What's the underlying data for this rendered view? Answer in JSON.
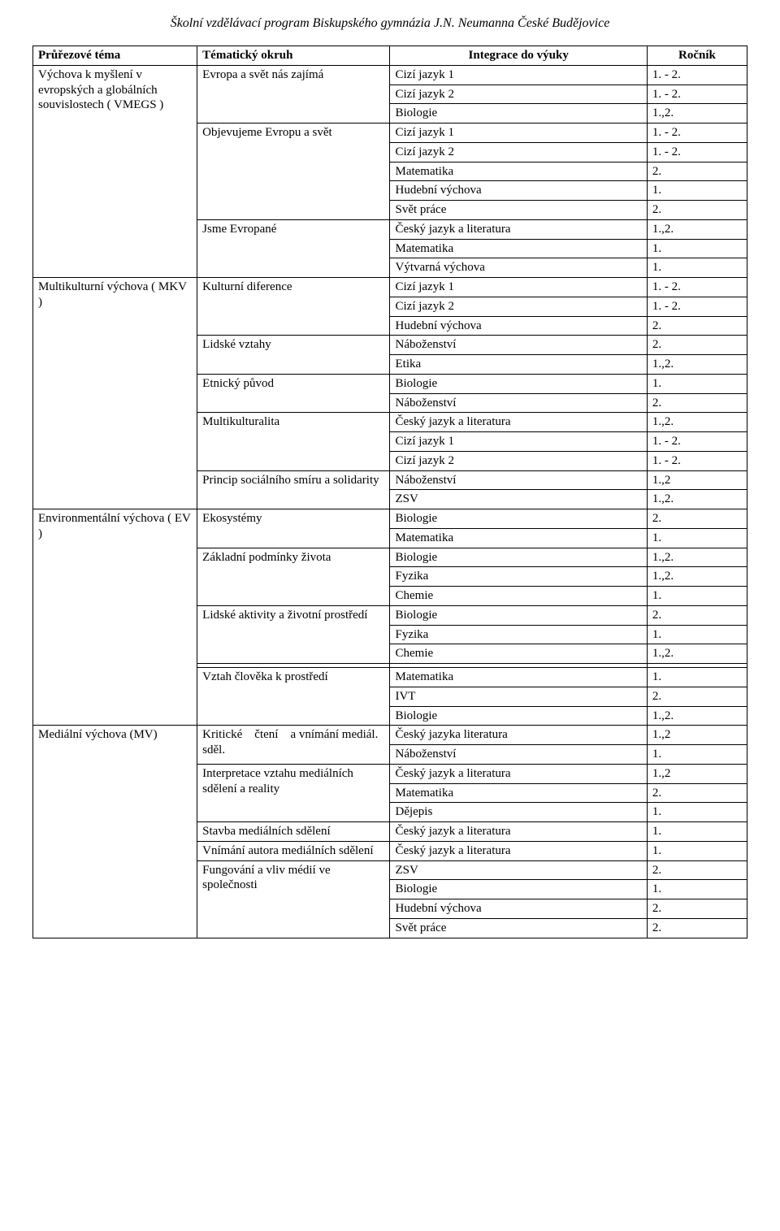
{
  "page_title": "Školní vzdělávací program Biskupského gymnázia J.N. Neumanna České Budějovice",
  "columns": {
    "c1": "Průřezové téma",
    "c2": "Tématický okruh",
    "c3": "Integrace do výuky",
    "c4": "Ročník"
  },
  "themes": [
    {
      "name": "Výchova k myšlení v evropských a globálních souvislostech ( VMEGS )",
      "topics": [
        {
          "name": "Evropa a svět nás zajímá",
          "rows": [
            {
              "subject": "Cizí jazyk 1",
              "year": "1. - 2."
            },
            {
              "subject": "Cizí jazyk 2",
              "year": "1. - 2."
            },
            {
              "subject": "Biologie",
              "year": "1.,2."
            }
          ]
        },
        {
          "name": "Objevujeme Evropu a svět",
          "rows": [
            {
              "subject": "Cizí jazyk 1",
              "year": "1. - 2."
            },
            {
              "subject": "Cizí jazyk 2",
              "year": "1. - 2."
            },
            {
              "subject": "Matematika",
              "year": "2."
            },
            {
              "subject": "Hudební výchova",
              "year": "1."
            },
            {
              "subject": "Svět práce",
              "year": "2."
            }
          ]
        },
        {
          "name": "Jsme Evropané",
          "rows": [
            {
              "subject": "Český jazyk a literatura",
              "year": "1.,2."
            },
            {
              "subject": "Matematika",
              "year": "1."
            },
            {
              "subject": "Výtvarná výchova",
              "year": "1."
            }
          ]
        }
      ]
    },
    {
      "name": "Multikulturní výchova (  MKV )",
      "topics": [
        {
          "name": "Kulturní diference",
          "rows": [
            {
              "subject": "Cizí jazyk 1",
              "year": "1. - 2."
            },
            {
              "subject": "Cizí jazyk 2",
              "year": "1. - 2."
            },
            {
              "subject": "Hudební výchova",
              "year": "2."
            }
          ]
        },
        {
          "name": "Lidské vztahy",
          "rows": [
            {
              "subject": "Náboženství",
              "year": "2."
            },
            {
              "subject": "Etika",
              "year": "1.,2."
            }
          ]
        },
        {
          "name": "Etnický původ",
          "rows": [
            {
              "subject": "Biologie",
              "year": "1."
            },
            {
              "subject": "Náboženství",
              "year": "2."
            }
          ]
        },
        {
          "name": "Multikulturalita",
          "rows": [
            {
              "subject": "Český jazyk a literatura",
              "year": "1.,2."
            },
            {
              "subject": "Cizí jazyk 1",
              "year": "1. - 2."
            },
            {
              "subject": "Cizí jazyk 2",
              "year": "1. - 2."
            }
          ]
        },
        {
          "name": "Princip sociálního smíru a solidarity",
          "rows": [
            {
              "subject": "Náboženství",
              "year": "1.,2"
            },
            {
              "subject": "ZSV",
              "year": "1.,2."
            }
          ]
        }
      ]
    },
    {
      "name": "Environmentální výchova ( EV )",
      "topics": [
        {
          "name": "Ekosystémy",
          "rows": [
            {
              "subject": "Biologie",
              "year": "2."
            },
            {
              "subject": "Matematika",
              "year": "1."
            }
          ]
        },
        {
          "name": "Základní podmínky života",
          "rows": [
            {
              "subject": "Biologie",
              "year": "1.,2."
            },
            {
              "subject": "Fyzika",
              "year": "1.,2."
            },
            {
              "subject": "Chemie",
              "year": "1."
            }
          ]
        },
        {
          "name": "Lidské aktivity a životní prostředí",
          "rows": [
            {
              "subject": "Biologie",
              "year": "2."
            },
            {
              "subject": "Fyzika",
              "year": "1."
            },
            {
              "subject": "Chemie",
              "year": "1.,2."
            }
          ]
        },
        {
          "name": "",
          "rows": [
            {
              "subject": "",
              "year": ""
            }
          ]
        },
        {
          "name": "Vztah člověka k  prostředí",
          "rows": [
            {
              "subject": "Matematika",
              "year": "1."
            },
            {
              "subject": "IVT",
              "year": "2."
            },
            {
              "subject": "Biologie",
              "year": "1.,2."
            }
          ]
        }
      ]
    },
    {
      "name": "Mediální výchova (MV)",
      "topics": [
        {
          "name": "Kritické    čtení    a vnímání mediál. sděl.",
          "rows": [
            {
              "subject": "Český jazyka literatura",
              "year": "1.,2"
            },
            {
              "subject": "Náboženství",
              "year": "1."
            }
          ]
        },
        {
          "name": "Interpretace vztahu mediálních sdělení a reality",
          "rows": [
            {
              "subject": "Český jazyk a literatura",
              "year": "1.,2"
            },
            {
              "subject": "Matematika",
              "year": "2."
            },
            {
              "subject": "Dějepis",
              "year": "1."
            }
          ]
        },
        {
          "name": "Stavba mediálních sdělení",
          "rows": [
            {
              "subject": "Český jazyk a literatura",
              "year": "1."
            }
          ]
        },
        {
          "name": "Vnímání autora mediálních sdělení",
          "rows": [
            {
              "subject": "Český jazyk a literatura",
              "year": "1."
            }
          ]
        },
        {
          "name": "Fungování a vliv médií ve společnosti",
          "rows": [
            {
              "subject": "ZSV",
              "year": "2."
            },
            {
              "subject": "Biologie",
              "year": "1."
            },
            {
              "subject": "Hudební výchova",
              "year": "2."
            },
            {
              "subject": "Svět práce",
              "year": "2."
            }
          ]
        }
      ]
    }
  ]
}
